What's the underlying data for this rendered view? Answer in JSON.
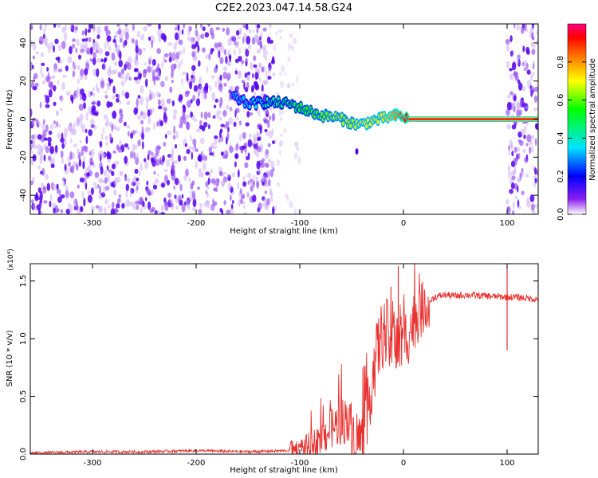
{
  "figure_title": "C2E2.2023.047.14.58.G24",
  "chart_data": [
    {
      "type": "heatmap",
      "title": "",
      "xlabel": "Height of straight line (km)",
      "ylabel": "Frequency (Hz)",
      "xlim": [
        -360,
        130
      ],
      "ylim": [
        -50,
        50
      ],
      "x_ticks": [
        -300,
        -200,
        -100,
        0,
        100
      ],
      "x_tick_labels": [
        "-300",
        "-200",
        "-100",
        "0",
        "100"
      ],
      "y_ticks": [
        -40,
        -20,
        0,
        20,
        40
      ],
      "y_tick_labels": [
        "-40",
        "-20",
        "0",
        "20",
        "40"
      ],
      "colorbar": {
        "label": "Normalized spectral amplitude",
        "ticks": [
          0.0,
          0.2,
          0.4,
          0.6,
          0.8
        ],
        "tick_labels": [
          "0.0",
          "0.2",
          "0.4",
          "0.6",
          "0.8"
        ],
        "range": [
          0,
          1
        ],
        "colormap": [
          "#ffffff",
          "#7a00e6",
          "#0000ff",
          "#00e5ff",
          "#00ff00",
          "#ffff00",
          "#ff8000",
          "#ff0000",
          "#ff0080"
        ]
      },
      "noise_regions": [
        {
          "x_range": [
            -360,
            -125
          ],
          "level": 0.12
        },
        {
          "x_range": [
            -125,
            -100
          ],
          "level": 0.05
        },
        {
          "x_range": [
            100,
            130
          ],
          "level": 0.12
        }
      ],
      "ridge": {
        "x": [
          -165,
          -150,
          -130,
          -110,
          -95,
          -80,
          -65,
          -50,
          -42,
          -30,
          -15,
          -5,
          5,
          100,
          110,
          120,
          130
        ],
        "freq": [
          12,
          8,
          9,
          8,
          5,
          2,
          1,
          -2,
          -3,
          -1,
          1,
          2,
          0,
          0,
          0,
          0,
          0
        ],
        "amplitude": [
          0.3,
          0.35,
          0.45,
          0.5,
          0.55,
          0.6,
          0.65,
          0.65,
          0.7,
          0.7,
          0.75,
          0.85,
          0.95,
          0.95,
          0.4,
          0.6,
          0.5
        ]
      },
      "grid": false
    },
    {
      "type": "line",
      "title": "",
      "xlabel": "Height of straight line (km)",
      "ylabel": "SNR (10 * v/v)",
      "y_multiplier": "(x10⁴)",
      "xlim": [
        -360,
        130
      ],
      "ylim": [
        0,
        1.65
      ],
      "x_ticks": [
        -300,
        -200,
        -100,
        0,
        100
      ],
      "x_tick_labels": [
        "-300",
        "-200",
        "-100",
        "0",
        "100"
      ],
      "y_ticks": [
        0.0,
        0.5,
        1.0,
        1.5
      ],
      "y_tick_labels": [
        "0.0",
        "0.5",
        "1.0",
        "1.5"
      ],
      "color": "#e8302e",
      "series": [
        {
          "x": [
            -360,
            -300,
            -250,
            -200,
            -150,
            -110,
            -100,
            -90,
            -80,
            -70,
            -60,
            -55,
            -50,
            -45,
            -40,
            -35,
            -30,
            -25,
            -20,
            -15,
            -10,
            -5,
            0,
            5,
            10,
            15,
            20,
            25,
            30,
            40,
            50,
            60,
            80,
            100,
            110,
            120,
            130
          ],
          "y": [
            0.01,
            0.02,
            0.02,
            0.03,
            0.02,
            0.03,
            0.05,
            0.07,
            0.12,
            0.22,
            0.28,
            0.3,
            0.2,
            0.15,
            0.12,
            0.35,
            0.65,
            0.9,
            1.05,
            1.02,
            0.95,
            0.95,
            0.98,
            1.05,
            1.15,
            1.22,
            1.28,
            1.32,
            1.36,
            1.38,
            1.37,
            1.38,
            1.37,
            1.36,
            1.36,
            1.35,
            1.34
          ],
          "spikes": [
            {
              "x": -5,
              "y": 1.63
            },
            {
              "x": -12,
              "y": 1.45
            },
            {
              "x": 100,
              "y": 1.62
            },
            {
              "x": 100,
              "y": 0.9
            }
          ]
        }
      ],
      "grid": false
    }
  ]
}
